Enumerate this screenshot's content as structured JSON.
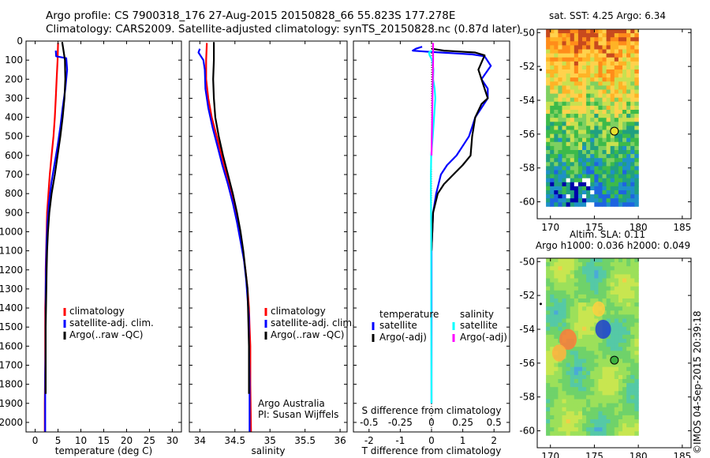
{
  "header": {
    "title_line1": "Argo profile: CS 7900318_176 27-Aug-2015 20150828_66 55.823S 177.278E",
    "title_line2": "Climatology: CARS2009. Satellite-adjusted climatology: synTS_20150828.nc (0.87d later)"
  },
  "credit": "©IMOS 04-Sep-2015 20:39:18",
  "colors": {
    "climatology": "#ff0000",
    "satellite_adj": "#0000ff",
    "argo": "#000000",
    "sal_satellite": "#00ffff",
    "sal_argo_adj": "#ff00ff"
  },
  "chart_data": [
    {
      "type": "line",
      "name": "temperature",
      "xlabel": "temperature (deg C)",
      "ylabel": "",
      "xlim": [
        -2,
        32
      ],
      "ylim": [
        0,
        2050
      ],
      "y_reversed": true,
      "xticks": [
        0,
        5,
        10,
        15,
        20,
        25,
        30
      ],
      "yticks": [
        0,
        100,
        200,
        300,
        400,
        500,
        600,
        700,
        800,
        900,
        1000,
        1100,
        1200,
        1300,
        1400,
        1500,
        1600,
        1700,
        1800,
        1900,
        2000
      ],
      "legend": [
        "climatology",
        "satellite-adj. clim.",
        "Argo(..raw -QC)"
      ],
      "series": [
        {
          "name": "climatology",
          "color": "#ff0000",
          "x": [
            5.0,
            4.9,
            4.7,
            4.5,
            4.3,
            4.0,
            3.6,
            3.2,
            2.9,
            2.6,
            2.5,
            2.4,
            2.3,
            2.3,
            2.2,
            2.2,
            2.2,
            2.2,
            2.1,
            2.1
          ],
          "y": [
            10,
            100,
            200,
            300,
            400,
            500,
            600,
            700,
            800,
            900,
            1000,
            1100,
            1200,
            1300,
            1400,
            1500,
            1600,
            1700,
            1900,
            2050
          ]
        },
        {
          "name": "satellite-adj. clim.",
          "color": "#0000ff",
          "x": [
            4.5,
            4.6,
            6.8,
            7.0,
            6.6,
            6.0,
            5.5,
            4.9,
            4.2,
            3.5,
            3.0,
            2.7,
            2.5,
            2.4,
            2.3,
            2.3,
            2.3,
            2.2,
            2.2,
            2.2,
            2.2
          ],
          "y": [
            50,
            80,
            90,
            150,
            250,
            350,
            450,
            550,
            650,
            750,
            850,
            950,
            1050,
            1150,
            1300,
            1450,
            1600,
            1750,
            1900,
            2000,
            2050
          ]
        },
        {
          "name": "Argo(..raw -QC)",
          "color": "#000000",
          "x": [
            5.9,
            6.2,
            6.5,
            6.6,
            6.4,
            6.0,
            5.5,
            4.9,
            4.3,
            3.6,
            3.1,
            2.8,
            2.6,
            2.5,
            2.4,
            2.3,
            2.3,
            2.3,
            2.3
          ],
          "y": [
            5,
            50,
            100,
            200,
            300,
            400,
            500,
            600,
            700,
            800,
            900,
            1000,
            1100,
            1200,
            1350,
            1500,
            1650,
            1800,
            1850
          ]
        }
      ]
    },
    {
      "type": "line",
      "name": "salinity",
      "xlabel": "salinity",
      "ylabel": "",
      "xlim": [
        33.85,
        36.1
      ],
      "ylim": [
        0,
        2050
      ],
      "y_reversed": true,
      "xticks": [
        34,
        34.5,
        35,
        35.5,
        36
      ],
      "legend": [
        "climatology",
        "satellite-adj. clim.",
        "Argo(..raw -QC)"
      ],
      "annotation": [
        "Argo Australia",
        "PI: Susan Wijffels"
      ],
      "series": [
        {
          "name": "climatology",
          "color": "#ff0000",
          "x": [
            34.1,
            34.09,
            34.09,
            34.12,
            34.17,
            34.24,
            34.31,
            34.38,
            34.45,
            34.51,
            34.56,
            34.61,
            34.65,
            34.68,
            34.7,
            34.71,
            34.72,
            34.72,
            34.73
          ],
          "y": [
            10,
            100,
            200,
            300,
            400,
            500,
            600,
            700,
            800,
            900,
            1000,
            1100,
            1200,
            1300,
            1400,
            1500,
            1600,
            1800,
            2050
          ]
        },
        {
          "name": "satellite-adj. clim.",
          "color": "#0000ff",
          "x": [
            34.0,
            33.98,
            34.05,
            34.07,
            34.08,
            34.12,
            34.18,
            34.25,
            34.32,
            34.4,
            34.47,
            34.53,
            34.58,
            34.63,
            34.66,
            34.68,
            34.7,
            34.7,
            34.71,
            34.71
          ],
          "y": [
            40,
            60,
            100,
            150,
            250,
            350,
            450,
            550,
            650,
            750,
            850,
            950,
            1050,
            1150,
            1250,
            1350,
            1450,
            1600,
            1800,
            2050
          ]
        },
        {
          "name": "Argo(..raw -QC)",
          "color": "#000000",
          "x": [
            34.2,
            34.2,
            34.19,
            34.2,
            34.22,
            34.27,
            34.33,
            34.4,
            34.47,
            34.53,
            34.58,
            34.62,
            34.65,
            34.68,
            34.69,
            34.7,
            34.7
          ],
          "y": [
            5,
            100,
            200,
            300,
            400,
            500,
            600,
            700,
            800,
            900,
            1000,
            1100,
            1200,
            1300,
            1450,
            1600,
            1850
          ]
        }
      ]
    },
    {
      "type": "line",
      "name": "difference from climatology",
      "xlabel": "T difference from climatology",
      "xlabel_top": "S difference from climatology",
      "ylabel": "",
      "xlim": [
        -2.5,
        2.5
      ],
      "ylim": [
        0,
        2050
      ],
      "y_reversed": true,
      "xticks": [
        -2,
        -1,
        0,
        1,
        2
      ],
      "xticks_top": [
        "-0.5",
        "-0.25",
        "0",
        "0.25",
        "0.5"
      ],
      "legend_groups": [
        {
          "title": "temperature",
          "items": [
            "satellite",
            "Argo(-adj)"
          ]
        },
        {
          "title": "salinity",
          "items": [
            "satellite",
            "Argo(-adj)"
          ]
        }
      ],
      "series": [
        {
          "name": "temperature satellite",
          "color": "#0000ff",
          "x": [
            -0.3,
            -0.5,
            -0.6,
            -0.2,
            0.3,
            0.8,
            1.3,
            1.7,
            1.9,
            1.6,
            1.8,
            1.8,
            1.6,
            1.4,
            1.3,
            1.2,
            1.0,
            0.8,
            0.5,
            0.3,
            0.15,
            0.05,
            0.0,
            0.0
          ],
          "y": [
            30,
            40,
            50,
            55,
            60,
            65,
            70,
            80,
            130,
            200,
            250,
            300,
            350,
            400,
            450,
            500,
            550,
            600,
            650,
            700,
            800,
            900,
            1100,
            1900
          ]
        },
        {
          "name": "temperature Argo(-adj)",
          "color": "#000000",
          "x": [
            0.0,
            0.4,
            0.9,
            1.4,
            1.7,
            1.5,
            1.7,
            1.8,
            1.6,
            1.4,
            1.3,
            1.25,
            1.0,
            0.7,
            0.4,
            0.2,
            0.05,
            0.0
          ],
          "y": [
            40,
            50,
            55,
            60,
            75,
            150,
            250,
            300,
            330,
            400,
            500,
            600,
            650,
            700,
            750,
            800,
            900,
            1100
          ]
        },
        {
          "name": "salinity satellite",
          "color": "#00ffff",
          "x": [
            0.0,
            -0.08,
            -0.06,
            0.02,
            0.06,
            0.05,
            0.1,
            0.12,
            0.1,
            0.08,
            0.04,
            -0.01,
            -0.02,
            -0.02,
            -0.01,
            -0.01,
            0.0
          ],
          "y": [
            50,
            60,
            75,
            100,
            150,
            200,
            250,
            300,
            350,
            400,
            500,
            600,
            700,
            800,
            1000,
            1400,
            1900
          ]
        },
        {
          "name": "salinity Argo(-adj)",
          "color": "#ff00ff",
          "x": [
            0.05,
            0.05,
            0.04,
            0.03,
            0.02,
            0.01,
            0.0
          ],
          "y": [
            10,
            100,
            200,
            300,
            400,
            500,
            600
          ]
        }
      ]
    },
    {
      "type": "heatmap",
      "name": "sst map",
      "title": "sat. SST: 4.25  Argo: 6.34",
      "xlim": [
        168.5,
        186
      ],
      "ylim": [
        -61,
        -49.8
      ],
      "xticks": [
        170,
        175,
        180,
        185
      ],
      "yticks": [
        -50,
        -52,
        -54,
        -56,
        -58,
        -60
      ],
      "data_extent": {
        "lon": [
          169.5,
          179.6
        ],
        "lat": [
          -60.2,
          -49.8
        ]
      },
      "argo_position": {
        "lon": 177.278,
        "lat": -55.823
      }
    },
    {
      "type": "heatmap",
      "name": "sla map",
      "title": "Altim. SLA: 0.11",
      "subtitle": "Argo h1000: 0.036 h2000: 0.049",
      "xlim": [
        168.5,
        186
      ],
      "ylim": [
        -61,
        -49.8
      ],
      "xticks": [
        170,
        175,
        180,
        185
      ],
      "yticks": [
        -50,
        -52,
        -54,
        -56,
        -58,
        -60
      ],
      "data_extent": {
        "lon": [
          169.5,
          179.6
        ],
        "lat": [
          -60.2,
          -49.8
        ]
      },
      "argo_position": {
        "lon": 177.278,
        "lat": -55.823
      }
    }
  ]
}
